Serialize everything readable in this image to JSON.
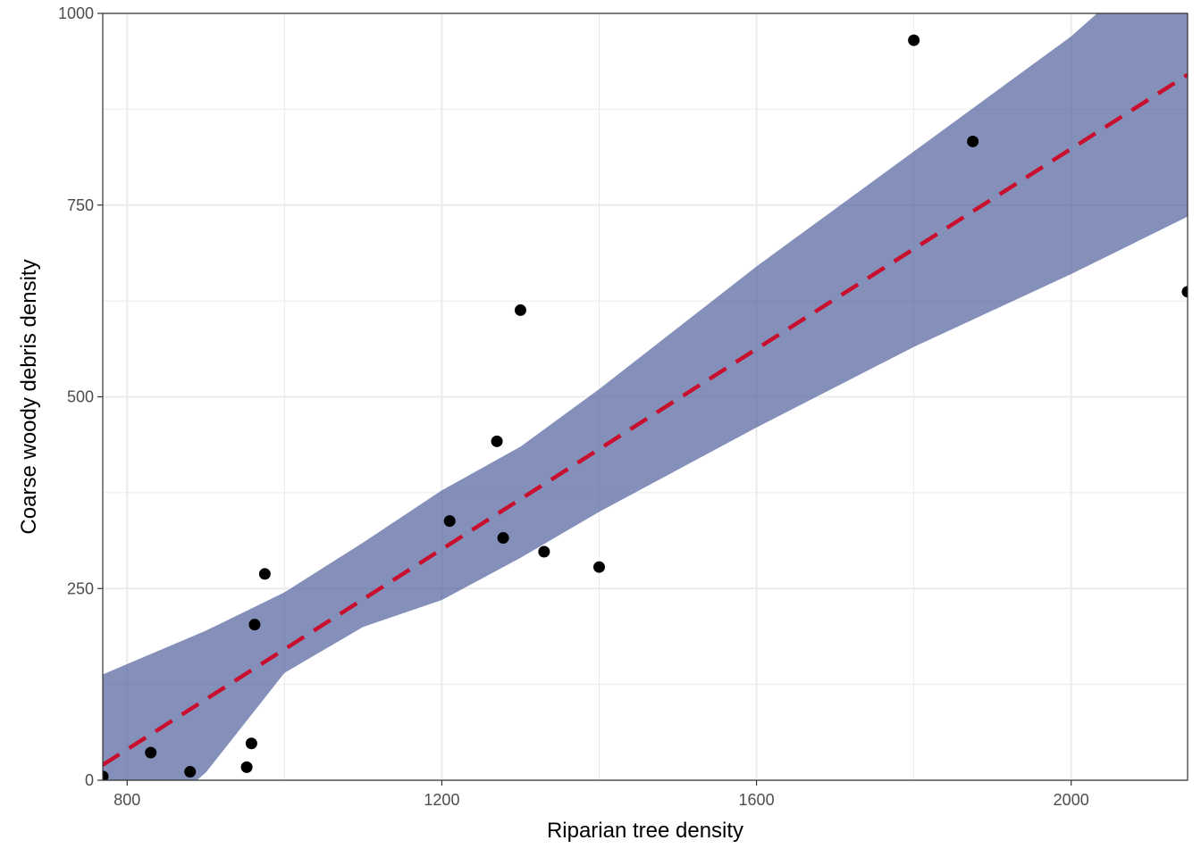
{
  "chart_data": {
    "type": "scatter",
    "xlabel": "Riparian tree density",
    "ylabel": "Coarse woody debris density",
    "xlim": [
      769,
      2148
    ],
    "ylim": [
      0,
      1000
    ],
    "x_ticks_major": [
      800,
      1200,
      1600,
      2000
    ],
    "x_ticks_minor": [
      1000,
      1400,
      1800
    ],
    "y_ticks_major": [
      0,
      250,
      500,
      750,
      1000
    ],
    "y_ticks_minor": [
      125,
      375,
      625,
      875
    ],
    "x_tick_labels": [
      "800",
      "1200",
      "1600",
      "2000"
    ],
    "y_tick_labels": [
      "0",
      "250",
      "500",
      "750",
      "1000"
    ],
    "grid": true,
    "points": [
      {
        "x": 769,
        "y": 5
      },
      {
        "x": 830,
        "y": 36
      },
      {
        "x": 880,
        "y": 11
      },
      {
        "x": 952,
        "y": 17
      },
      {
        "x": 958,
        "y": 48
      },
      {
        "x": 962,
        "y": 203
      },
      {
        "x": 975,
        "y": 269
      },
      {
        "x": 1210,
        "y": 338
      },
      {
        "x": 1270,
        "y": 442
      },
      {
        "x": 1278,
        "y": 316
      },
      {
        "x": 1300,
        "y": 613
      },
      {
        "x": 1330,
        "y": 298
      },
      {
        "x": 1400,
        "y": 278
      },
      {
        "x": 1800,
        "y": 965
      },
      {
        "x": 1875,
        "y": 833
      },
      {
        "x": 2148,
        "y": 637
      }
    ],
    "fit_line": {
      "x": [
        769,
        2148
      ],
      "y": [
        20,
        920
      ],
      "style": "dashed",
      "color": "#c8102e"
    },
    "confidence_band": {
      "x": [
        769,
        900,
        1000,
        1100,
        1200,
        1300,
        1400,
        1600,
        1800,
        2000,
        2148
      ],
      "lower": [
        -105,
        10,
        140,
        200,
        235,
        290,
        350,
        460,
        565,
        660,
        735
      ],
      "upper": [
        138,
        195,
        245,
        310,
        378,
        435,
        510,
        670,
        820,
        970,
        1105
      ],
      "color": "#4a5a99"
    },
    "colors": {
      "point": "#000000",
      "band": "#4a5a99",
      "line": "#c8102e",
      "grid": "#ebebeb",
      "panel_border": "#333333"
    }
  }
}
